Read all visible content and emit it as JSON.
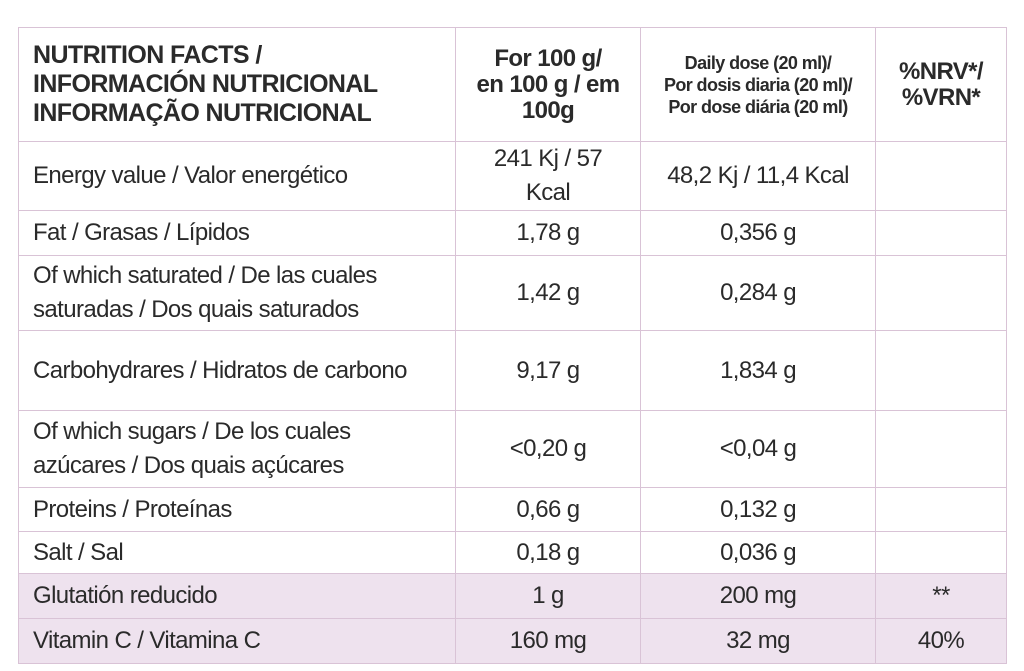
{
  "table": {
    "header": [
      [
        "NUTRITION FACTS /",
        "INFORMACIÓN NUTRICIONAL",
        "INFORMAÇÃO NUTRICIONAL"
      ],
      [
        "For 100 g/",
        "en 100 g / em",
        "100g"
      ],
      [
        "Daily dose (20 ml)/",
        "Por dosis diaria (20 ml)/",
        "Por dose diária (20 ml)"
      ],
      [
        "%NRV*/",
        "%VRN*"
      ]
    ],
    "rows": [
      [
        "Energy value / Valor energético",
        "241 Kj / 57 Kcal",
        "48,2 Kj / 11,4 Kcal"
      ],
      [
        "Fat / Grasas / Lípidos",
        "1,78 g",
        "0,356 g"
      ],
      [
        "Of which saturated / De las cuales saturadas / Dos quais saturados",
        "1,42 g",
        "0,284 g"
      ],
      [
        "Carbohydrares / Hidratos de carbono",
        "9,17 g",
        "1,834 g"
      ],
      [
        "Of which  sugars / De los cuales azúcares / Dos quais açúcares",
        "<0,20 g",
        "<0,04 g"
      ],
      [
        "Proteins / Proteínas",
        "0,66 g",
        "0,132 g"
      ],
      [
        "Salt / Sal",
        "0,18 g",
        "0,036 g"
      ],
      [
        "Glutatión reducido",
        "1 g",
        "200 mg",
        "**"
      ],
      [
        "Vitamin C / Vitamina C",
        "160 mg",
        "32 mg",
        "40%"
      ]
    ]
  }
}
